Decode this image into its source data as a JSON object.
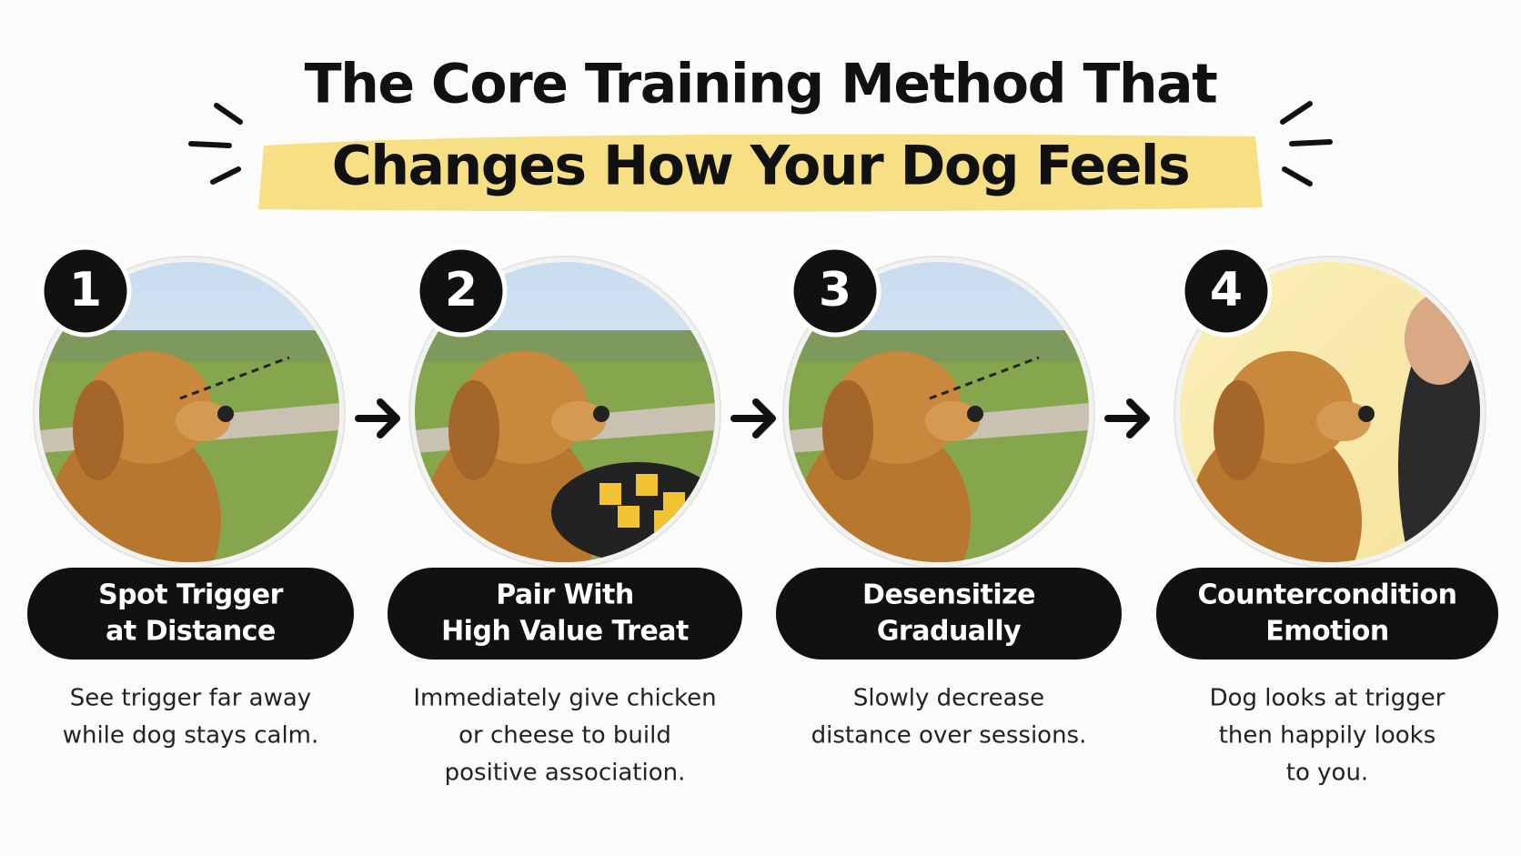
{
  "header": {
    "title_lines": [
      "The Core Training Method That",
      "Changes How Your Dog Feels"
    ]
  },
  "steps": [
    {
      "number": "1",
      "label_lines": [
        "Spot Trigger",
        "at Distance"
      ],
      "description_lines": [
        "See trigger far away",
        "while dog stays calm."
      ]
    },
    {
      "number": "2",
      "label_lines": [
        "Pair With",
        "High Value Treat"
      ],
      "description_lines": [
        "Immediately give chicken",
        "or cheese to build",
        "positive association."
      ]
    },
    {
      "number": "3",
      "label_lines": [
        "Desensitize",
        "Gradually"
      ],
      "description_lines": [
        "Slowly decrease",
        "distance over sessions."
      ]
    },
    {
      "number": "4",
      "label_lines": [
        "Countercondition",
        "Emotion"
      ],
      "description_lines": [
        "Dog looks at trigger",
        "then happily looks",
        "to you."
      ]
    }
  ]
}
